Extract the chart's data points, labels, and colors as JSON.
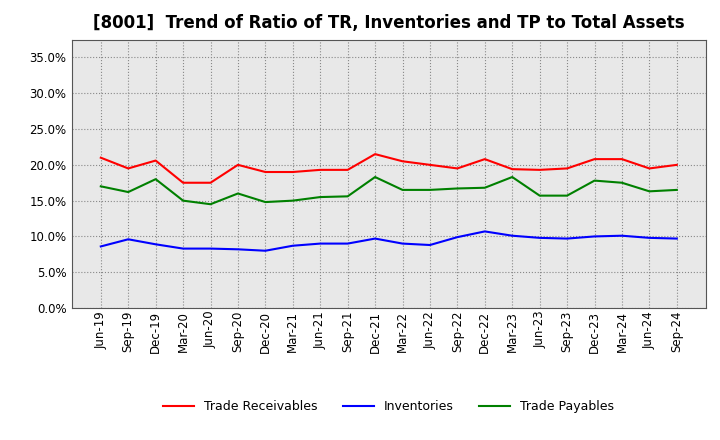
{
  "title": "[8001]  Trend of Ratio of TR, Inventories and TP to Total Assets",
  "x_labels": [
    "Jun-19",
    "Sep-19",
    "Dec-19",
    "Mar-20",
    "Jun-20",
    "Sep-20",
    "Dec-20",
    "Mar-21",
    "Jun-21",
    "Sep-21",
    "Dec-21",
    "Mar-22",
    "Jun-22",
    "Sep-22",
    "Dec-22",
    "Mar-23",
    "Jun-23",
    "Sep-23",
    "Dec-23",
    "Mar-24",
    "Jun-24",
    "Sep-24"
  ],
  "trade_receivables": [
    0.21,
    0.195,
    0.206,
    0.175,
    0.175,
    0.2,
    0.19,
    0.19,
    0.193,
    0.193,
    0.215,
    0.205,
    0.2,
    0.195,
    0.208,
    0.194,
    0.193,
    0.195,
    0.208,
    0.208,
    0.195,
    0.2
  ],
  "inventories": [
    0.086,
    0.096,
    0.089,
    0.083,
    0.083,
    0.082,
    0.08,
    0.087,
    0.09,
    0.09,
    0.097,
    0.09,
    0.088,
    0.099,
    0.107,
    0.101,
    0.098,
    0.097,
    0.1,
    0.101,
    0.098,
    0.097
  ],
  "trade_payables": [
    0.17,
    0.162,
    0.18,
    0.15,
    0.145,
    0.16,
    0.148,
    0.15,
    0.155,
    0.156,
    0.183,
    0.165,
    0.165,
    0.167,
    0.168,
    0.183,
    0.157,
    0.157,
    0.178,
    0.175,
    0.163,
    0.165
  ],
  "color_tr": "#FF0000",
  "color_inv": "#0000FF",
  "color_tp": "#008000",
  "ylim": [
    0.0,
    0.375
  ],
  "yticks": [
    0.0,
    0.05,
    0.1,
    0.15,
    0.2,
    0.25,
    0.3,
    0.35
  ],
  "background_color": "#e8e8e8",
  "grid_color": "#888888",
  "legend_labels": [
    "Trade Receivables",
    "Inventories",
    "Trade Payables"
  ],
  "title_fontsize": 12,
  "tick_fontsize": 8.5,
  "legend_fontsize": 9
}
